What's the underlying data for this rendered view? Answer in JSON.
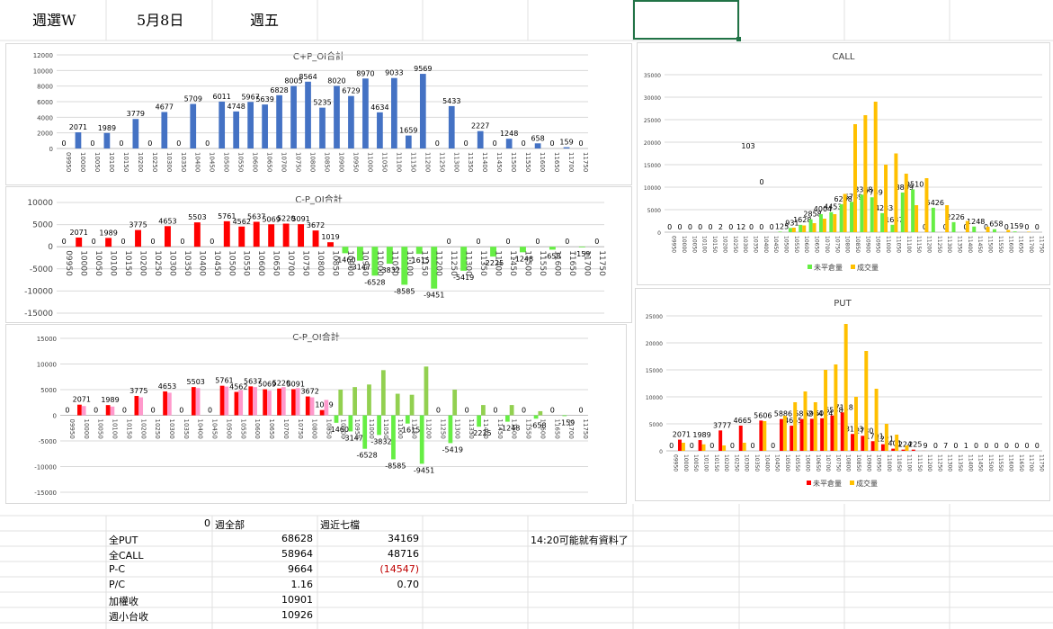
{
  "sheet_header": {
    "week": "週選W",
    "date": "5月8日",
    "weekday": "週五"
  },
  "colors": {
    "blue": "#4472c4",
    "red": "#ff0000",
    "green": "#92d050",
    "bright_green": "#66ee44",
    "pink": "#ff99cc",
    "orange": "#ffc000",
    "gridline": "#d9d9d9"
  },
  "chart_data": [
    {
      "id": "cp-sum",
      "type": "bar",
      "title": "C+P_OI合計",
      "categories": [
        "09950",
        "10000",
        "10050",
        "10100",
        "10150",
        "10200",
        "10250",
        "10300",
        "10350",
        "10400",
        "10450",
        "10500",
        "10550",
        "10600",
        "10650",
        "10700",
        "10750",
        "10800",
        "10850",
        "10900",
        "10950",
        "11000",
        "11050",
        "11100",
        "11150",
        "11200",
        "11250",
        "11300",
        "11350",
        "11400",
        "11450",
        "11500",
        "11550",
        "11600",
        "11650",
        "11700",
        "11750"
      ],
      "series": [
        {
          "values": [
            0,
            2071,
            0,
            1989,
            0,
            3779,
            0,
            4677,
            0,
            5709,
            0,
            6011,
            4748,
            5967,
            5639,
            6828,
            8005,
            8564,
            5235,
            8020,
            6729,
            8970,
            4634,
            9033,
            1659,
            9569,
            0,
            5433,
            0,
            2227,
            0,
            1248,
            0,
            658,
            0,
            159,
            0
          ]
        }
      ],
      "ylim": [
        0,
        12000
      ],
      "yticks": [
        0,
        2000,
        4000,
        6000,
        8000,
        10000,
        12000
      ]
    },
    {
      "id": "cp-diff",
      "type": "bar",
      "title": "C-P_OI合計",
      "categories": [
        "09950",
        "10000",
        "10050",
        "10100",
        "10150",
        "10200",
        "10250",
        "10300",
        "10350",
        "10400",
        "10450",
        "10500",
        "10550",
        "10600",
        "10650",
        "10700",
        "10750",
        "10800",
        "10850",
        "10900",
        "10950",
        "11000",
        "11050",
        "11100",
        "11150",
        "11200",
        "11250",
        "11300",
        "11350",
        "11400",
        "11450",
        "11500",
        "11550",
        "11600",
        "11650",
        "11700",
        "11750"
      ],
      "series": [
        {
          "values": [
            0,
            2071,
            0,
            1989,
            0,
            3775,
            0,
            4653,
            0,
            5503,
            0,
            5761,
            4562,
            5637,
            5069,
            5220,
            5091,
            3672,
            1019,
            -1460,
            -3147,
            -6528,
            -3832,
            -8585,
            -1615,
            -9451,
            0,
            -5419,
            0,
            -2225,
            0,
            -1248,
            0,
            -658,
            0,
            -159,
            0
          ]
        }
      ],
      "ylim": [
        -15000,
        10000
      ],
      "yticks": [
        -15000,
        -10000,
        -5000,
        0,
        5000,
        10000
      ]
    },
    {
      "id": "cp-diff2",
      "type": "bar",
      "title": "C-P_OI合計",
      "categories": [
        "09950",
        "10000",
        "10050",
        "10100",
        "10150",
        "10200",
        "10250",
        "10300",
        "10350",
        "10400",
        "10450",
        "10500",
        "10550",
        "10600",
        "10650",
        "10700",
        "10750",
        "10800",
        "10850",
        "10900",
        "10950",
        "11000",
        "11050",
        "11100",
        "11150",
        "11200",
        "11250",
        "11300",
        "11350",
        "11400",
        "11450",
        "11500",
        "11550",
        "11600",
        "11650",
        "11700",
        "11750"
      ],
      "series": [
        {
          "values": [
            0,
            2071,
            0,
            1989,
            0,
            3775,
            0,
            4653,
            0,
            5503,
            0,
            5761,
            4562,
            5637,
            5069,
            5220,
            5091,
            3672,
            1019,
            -1460,
            -3147,
            -6528,
            -3832,
            -8585,
            -1615,
            -9451,
            0,
            -5419,
            0,
            -2225,
            0,
            -1248,
            0,
            -658,
            0,
            -159,
            0
          ]
        },
        {
          "values": [
            0,
            1800,
            0,
            1700,
            0,
            3500,
            0,
            4400,
            0,
            5300,
            0,
            5600,
            4900,
            5500,
            4800,
            5500,
            5300,
            3500,
            3000,
            5000,
            5500,
            6000,
            8800,
            4200,
            4000,
            9500,
            0,
            5000,
            0,
            2000,
            0,
            2000,
            0,
            800,
            0,
            0,
            0
          ]
        }
      ],
      "ylim": [
        -15000,
        15000
      ],
      "yticks": [
        -15000,
        -10000,
        -5000,
        0,
        5000,
        10000,
        15000
      ]
    },
    {
      "id": "call",
      "type": "bar",
      "title": "CALL",
      "categories": [
        "09950",
        "10000",
        "10050",
        "10100",
        "10150",
        "10200",
        "10250",
        "10300",
        "10350",
        "10400",
        "10450",
        "10500",
        "10550",
        "10600",
        "10650",
        "10700",
        "10750",
        "10800",
        "10850",
        "10900",
        "10950",
        "11000",
        "11050",
        "11100",
        "11150",
        "11200",
        "11250",
        "11300",
        "11350",
        "11400",
        "11450",
        "11500",
        "11550",
        "11600",
        "11650",
        "11700",
        "11750"
      ],
      "legend": [
        "未平倉量",
        "成交量"
      ],
      "legend_position": "bottom",
      "series": [
        {
          "name": "未平倉量",
          "values": [
            0,
            0,
            0,
            0,
            0,
            2,
            0,
            12,
            0,
            0,
            0,
            125,
            931,
            1628,
            2858,
            4004,
            4453,
            6208,
            6739,
            8338,
            7749,
            4233,
            1637,
            8809,
            9510,
            0,
            5426,
            0,
            2226,
            0,
            1248,
            0,
            658,
            0,
            159,
            0,
            0
          ]
        },
        {
          "name": "成交量",
          "values": [
            0,
            0,
            0,
            0,
            0,
            0,
            0,
            0,
            0,
            0,
            0,
            0,
            1000,
            1500,
            2000,
            3000,
            4000,
            8500,
            24000,
            26000,
            29000,
            15000,
            17500,
            13000,
            6000,
            12000,
            0,
            6000,
            0,
            2500,
            0,
            1200,
            0,
            500,
            0,
            100,
            0
          ]
        }
      ],
      "ylim": [
        0,
        35000
      ],
      "yticks": [
        0,
        5000,
        10000,
        15000,
        20000,
        25000,
        30000,
        35000
      ],
      "annotations": [
        "103",
        "0"
      ]
    },
    {
      "id": "put",
      "type": "bar",
      "title": "PUT",
      "categories": [
        "09950",
        "10000",
        "10050",
        "10100",
        "10150",
        "10200",
        "10250",
        "10300",
        "10350",
        "10400",
        "10450",
        "10500",
        "10550",
        "10600",
        "10650",
        "10700",
        "10750",
        "10800",
        "10850",
        "10900",
        "10950",
        "11000",
        "11050",
        "11100",
        "11150",
        "11200",
        "11250",
        "11300",
        "11350",
        "11400",
        "11450",
        "11500",
        "11550",
        "11600",
        "11650",
        "11700",
        "11750"
      ],
      "legend": [
        "未平倉量",
        "成交量"
      ],
      "legend_position": "bottom",
      "series": [
        {
          "name": "未平倉量",
          "values": [
            0,
            2071,
            0,
            1989,
            0,
            3777,
            0,
            4665,
            0,
            5606,
            0,
            5886,
            4655,
            5892,
            5934,
            6024,
            6548,
            7118,
            3123,
            2780,
            1791,
            1221,
            401,
            224,
            225,
            9,
            0,
            7,
            0,
            1,
            0,
            0,
            0,
            0,
            0,
            0,
            0
          ]
        },
        {
          "name": "成交量",
          "values": [
            0,
            1500,
            0,
            1200,
            0,
            1000,
            0,
            1500,
            0,
            5500,
            0,
            6500,
            9000,
            11000,
            9000,
            15000,
            16000,
            23500,
            10000,
            18500,
            11500,
            5000,
            3000,
            1000,
            0,
            0,
            0,
            0,
            0,
            0,
            0,
            0,
            0,
            0,
            0,
            0,
            0
          ]
        }
      ],
      "ylim": [
        0,
        25000
      ],
      "yticks": [
        0,
        5000,
        10000,
        15000,
        20000,
        25000
      ]
    }
  ],
  "summary": {
    "corner_value": "0",
    "col1_header": "週全部",
    "col2_header": "週近七檔",
    "note": "14:20可能就有資料了",
    "rows": [
      {
        "label": "全PUT",
        "v1": "68628",
        "v2": "34169"
      },
      {
        "label": "全CALL",
        "v1": "58964",
        "v2": "48716"
      },
      {
        "label": "P-C",
        "v1": "9664",
        "v2": "(14547)"
      },
      {
        "label": "P/C",
        "v1": "1.16",
        "v2": "0.70"
      },
      {
        "label": "加權收",
        "v1": "10901",
        "v2": ""
      },
      {
        "label": "週小台收",
        "v1": "10926",
        "v2": ""
      }
    ]
  }
}
